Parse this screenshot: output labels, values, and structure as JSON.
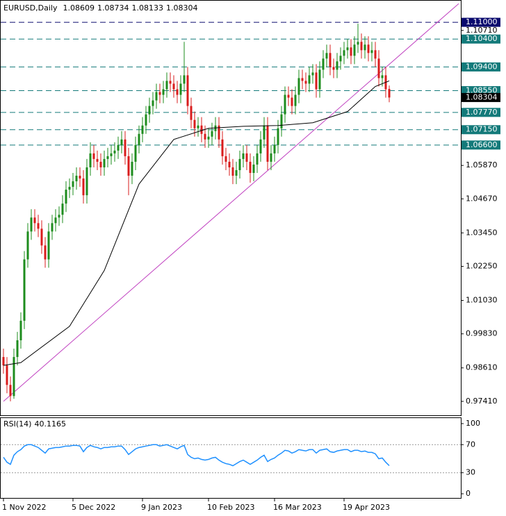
{
  "chart_data": [
    {
      "type": "candlestick",
      "title": "EURUSD,Daily",
      "categories": [
        "1 Nov 2022",
        null,
        null,
        null,
        null,
        null,
        null,
        null,
        null,
        null,
        null,
        null,
        null,
        null,
        null,
        null,
        null,
        null,
        null,
        null,
        "5 Dec 2022",
        null,
        null,
        null,
        null,
        null,
        null,
        null,
        null,
        null,
        null,
        null,
        null,
        null,
        null,
        null,
        null,
        null,
        null,
        null,
        "9 Jan 2023",
        null,
        null,
        null,
        null,
        null,
        null,
        null,
        null,
        null,
        null,
        null,
        null,
        null,
        null,
        null,
        null,
        null,
        null,
        "10 Feb 2023",
        null,
        null,
        null,
        null,
        null,
        null,
        null,
        null,
        null,
        null,
        null,
        null,
        null,
        null,
        null,
        null,
        null,
        null,
        "16 Mar 2023",
        null,
        null,
        null,
        null,
        null,
        null,
        null,
        null,
        null,
        null,
        null,
        null,
        null,
        null,
        null,
        null,
        null,
        null,
        null,
        "19 Apr 2023",
        null,
        null,
        null,
        null,
        null,
        null,
        null,
        null,
        null,
        null,
        null,
        null,
        null
      ],
      "ohlc": [
        [
          0.99,
          0.993,
          0.984,
          0.987
        ],
        [
          0.987,
          0.99,
          0.977,
          0.98
        ],
        [
          0.98,
          0.983,
          0.9741,
          0.976
        ],
        [
          0.976,
          0.993,
          0.975,
          0.99
        ],
        [
          0.99,
          0.999,
          0.987,
          0.996
        ],
        [
          0.996,
          1.006,
          0.993,
          1.003
        ],
        [
          1.003,
          1.028,
          1.0,
          1.025
        ],
        [
          1.025,
          1.038,
          1.022,
          1.035
        ],
        [
          1.035,
          1.043,
          1.032,
          1.04
        ],
        [
          1.04,
          1.043,
          1.035,
          1.038
        ],
        [
          1.038,
          1.041,
          1.033,
          1.036
        ],
        [
          1.036,
          1.039,
          1.027,
          1.03
        ],
        [
          1.03,
          1.033,
          1.022,
          1.025
        ],
        [
          1.025,
          1.038,
          1.022,
          1.035
        ],
        [
          1.035,
          1.041,
          1.032,
          1.038
        ],
        [
          1.038,
          1.043,
          1.035,
          1.04
        ],
        [
          1.04,
          1.044,
          1.037,
          1.041
        ],
        [
          1.041,
          1.048,
          1.038,
          1.045
        ],
        [
          1.045,
          1.053,
          1.042,
          1.05
        ],
        [
          1.05,
          1.054,
          1.047,
          1.051
        ],
        [
          1.051,
          1.056,
          1.048,
          1.053
        ],
        [
          1.053,
          1.058,
          1.05,
          1.055
        ],
        [
          1.055,
          1.058,
          1.051,
          1.054
        ],
        [
          1.054,
          1.057,
          1.045,
          1.048
        ],
        [
          1.048,
          1.061,
          1.045,
          1.058
        ],
        [
          1.058,
          1.067,
          1.055,
          1.063
        ],
        [
          1.063,
          1.066,
          1.058,
          1.061
        ],
        [
          1.061,
          1.064,
          1.057,
          1.06
        ],
        [
          1.06,
          1.063,
          1.055,
          1.058
        ],
        [
          1.058,
          1.064,
          1.055,
          1.061
        ],
        [
          1.061,
          1.065,
          1.058,
          1.062
        ],
        [
          1.062,
          1.066,
          1.059,
          1.063
        ],
        [
          1.063,
          1.067,
          1.06,
          1.064
        ],
        [
          1.064,
          1.069,
          1.061,
          1.066
        ],
        [
          1.066,
          1.071,
          1.063,
          1.068
        ],
        [
          1.068,
          1.071,
          1.059,
          1.062
        ],
        [
          1.062,
          1.065,
          1.048,
          1.055
        ],
        [
          1.055,
          1.063,
          1.052,
          1.06
        ],
        [
          1.06,
          1.069,
          1.057,
          1.066
        ],
        [
          1.066,
          1.073,
          1.063,
          1.07
        ],
        [
          1.07,
          1.076,
          1.067,
          1.073
        ],
        [
          1.073,
          1.08,
          1.07,
          1.077
        ],
        [
          1.077,
          1.083,
          1.074,
          1.08
        ],
        [
          1.08,
          1.085,
          1.077,
          1.082
        ],
        [
          1.082,
          1.088,
          1.079,
          1.085
        ],
        [
          1.085,
          1.088,
          1.081,
          1.084
        ],
        [
          1.084,
          1.089,
          1.081,
          1.086
        ],
        [
          1.086,
          1.092,
          1.083,
          1.089
        ],
        [
          1.089,
          1.092,
          1.085,
          1.088
        ],
        [
          1.088,
          1.091,
          1.083,
          1.086
        ],
        [
          1.086,
          1.089,
          1.081,
          1.084
        ],
        [
          1.084,
          1.091,
          1.081,
          1.088
        ],
        [
          1.088,
          1.103,
          1.085,
          1.091
        ],
        [
          1.091,
          1.094,
          1.077,
          1.08
        ],
        [
          1.08,
          1.083,
          1.072,
          1.075
        ],
        [
          1.075,
          1.078,
          1.069,
          1.072
        ],
        [
          1.072,
          1.076,
          1.069,
          1.073
        ],
        [
          1.073,
          1.076,
          1.067,
          1.07
        ],
        [
          1.07,
          1.073,
          1.065,
          1.068
        ],
        [
          1.068,
          1.072,
          1.065,
          1.069
        ],
        [
          1.069,
          1.074,
          1.066,
          1.071
        ],
        [
          1.071,
          1.076,
          1.068,
          1.073
        ],
        [
          1.073,
          1.076,
          1.065,
          1.068
        ],
        [
          1.068,
          1.071,
          1.059,
          1.062
        ],
        [
          1.062,
          1.065,
          1.057,
          1.06
        ],
        [
          1.06,
          1.063,
          1.055,
          1.058
        ],
        [
          1.058,
          1.061,
          1.052,
          1.055
        ],
        [
          1.055,
          1.06,
          1.052,
          1.057
        ],
        [
          1.057,
          1.064,
          1.054,
          1.061
        ],
        [
          1.061,
          1.066,
          1.058,
          1.063
        ],
        [
          1.063,
          1.066,
          1.057,
          1.06
        ],
        [
          1.06,
          1.063,
          1.0525,
          1.056
        ],
        [
          1.056,
          1.062,
          1.053,
          1.059
        ],
        [
          1.059,
          1.066,
          1.056,
          1.063
        ],
        [
          1.063,
          1.071,
          1.06,
          1.068
        ],
        [
          1.068,
          1.076,
          1.065,
          1.073
        ],
        [
          1.073,
          1.076,
          1.057,
          1.06
        ],
        [
          1.06,
          1.066,
          1.057,
          1.063
        ],
        [
          1.063,
          1.069,
          1.06,
          1.066
        ],
        [
          1.066,
          1.075,
          1.063,
          1.072
        ],
        [
          1.072,
          1.08,
          1.069,
          1.077
        ],
        [
          1.077,
          1.087,
          1.074,
          1.084
        ],
        [
          1.084,
          1.087,
          1.08,
          1.083
        ],
        [
          1.083,
          1.086,
          1.077,
          1.08
        ],
        [
          1.08,
          1.087,
          1.077,
          1.084
        ],
        [
          1.084,
          1.093,
          1.081,
          1.09
        ],
        [
          1.09,
          1.093,
          1.086,
          1.089
        ],
        [
          1.089,
          1.092,
          1.085,
          1.088
        ],
        [
          1.088,
          1.094,
          1.085,
          1.091
        ],
        [
          1.091,
          1.095,
          1.088,
          1.092
        ],
        [
          1.092,
          1.095,
          1.083,
          1.086
        ],
        [
          1.086,
          1.096,
          1.083,
          1.093
        ],
        [
          1.093,
          1.1,
          1.09,
          1.097
        ],
        [
          1.097,
          1.102,
          1.094,
          1.099
        ],
        [
          1.099,
          1.102,
          1.091,
          1.094
        ],
        [
          1.094,
          1.097,
          1.09,
          1.093
        ],
        [
          1.093,
          1.099,
          1.09,
          1.096
        ],
        [
          1.096,
          1.101,
          1.093,
          1.098
        ],
        [
          1.098,
          1.103,
          1.095,
          1.1
        ],
        [
          1.1,
          1.104,
          1.097,
          1.101
        ],
        [
          1.101,
          1.104,
          1.095,
          1.098
        ],
        [
          1.098,
          1.105,
          1.095,
          1.102
        ],
        [
          1.102,
          1.1095,
          1.099,
          1.103
        ],
        [
          1.103,
          1.106,
          1.097,
          1.1
        ],
        [
          1.1,
          1.105,
          1.097,
          1.102
        ],
        [
          1.102,
          1.105,
          1.096,
          1.099
        ],
        [
          1.099,
          1.103,
          1.096,
          1.1
        ],
        [
          1.1,
          1.103,
          1.094,
          1.097
        ],
        [
          1.097,
          1.1,
          1.087,
          1.09
        ],
        [
          1.09,
          1.094,
          1.087,
          1.091
        ],
        [
          1.091,
          1.094,
          1.083,
          1.086
        ],
        [
          1.08609,
          1.08734,
          1.08133,
          1.08304
        ]
      ],
      "up_color": "#1e8c1e",
      "down_color": "#d91c1c",
      "ma": {
        "color": "#000000",
        "x": [
          0,
          5,
          19,
          29,
          39,
          49,
          59,
          69,
          79,
          89,
          99,
          107,
          111
        ],
        "values": [
          0.987,
          0.988,
          1.001,
          1.021,
          1.052,
          1.068,
          1.072,
          1.0727,
          1.073,
          1.074,
          1.078,
          1.087,
          1.089
        ]
      },
      "trendline": {
        "color": "#c040c0",
        "x": [
          0,
          131
        ],
        "values": [
          0.9741,
          1.1167
        ]
      },
      "levels": [
        {
          "value": 1.11,
          "label": "1.11000",
          "color": "#0a0a6e"
        },
        {
          "value": 1.104,
          "label": "1.10400",
          "color": "#137a7a"
        },
        {
          "value": 1.094,
          "label": "1.09400",
          "color": "#137a7a"
        },
        {
          "value": 1.0855,
          "label": "1.08550",
          "color": "#137a7a"
        },
        {
          "value": 1.0777,
          "label": "1.07770",
          "color": "#137a7a"
        },
        {
          "value": 1.0715,
          "label": "1.07150",
          "color": "#137a7a"
        },
        {
          "value": 1.066,
          "label": "1.06600",
          "color": "#137a7a"
        }
      ],
      "ylim": [
        0.9691,
        1.118
      ],
      "yticks": [
        {
          "value": 1.1071,
          "label": "1.10710"
        },
        {
          "value": 1.0587,
          "label": "1.05870"
        },
        {
          "value": 1.0467,
          "label": "1.04670"
        },
        {
          "value": 1.0345,
          "label": "1.03450"
        },
        {
          "value": 1.0225,
          "label": "1.02250"
        },
        {
          "value": 1.0103,
          "label": "1.01030"
        },
        {
          "value": 0.9983,
          "label": "0.99830"
        },
        {
          "value": 0.9861,
          "label": "0.98610"
        },
        {
          "value": 0.9741,
          "label": "0.97410"
        }
      ]
    },
    {
      "type": "line",
      "title": "RSI(14)",
      "color": "#1e90ff",
      "values": [
        52,
        45,
        42,
        55,
        60,
        63,
        68,
        70,
        70,
        68,
        66,
        62,
        58,
        64,
        65,
        66,
        66,
        67,
        68,
        68,
        69,
        69,
        68,
        60,
        66,
        69,
        67,
        66,
        64,
        66,
        66,
        67,
        67,
        68,
        68,
        63,
        56,
        60,
        64,
        66,
        67,
        68,
        69,
        70,
        70,
        68,
        69,
        70,
        68,
        66,
        64,
        67,
        69,
        56,
        52,
        50,
        51,
        49,
        48,
        49,
        51,
        52,
        48,
        45,
        43,
        42,
        40,
        43,
        46,
        48,
        45,
        42,
        45,
        48,
        52,
        55,
        46,
        49,
        51,
        55,
        58,
        62,
        61,
        58,
        60,
        63,
        62,
        61,
        63,
        63,
        58,
        62,
        63,
        64,
        60,
        59,
        61,
        62,
        63,
        63,
        60,
        62,
        62,
        60,
        61,
        59,
        59,
        57,
        50,
        51,
        45,
        40.1165
      ],
      "ylim": [
        -6.9,
        108.9
      ],
      "yticks": [
        0,
        30,
        70,
        100
      ],
      "levels": [
        30,
        70
      ]
    }
  ]
}
